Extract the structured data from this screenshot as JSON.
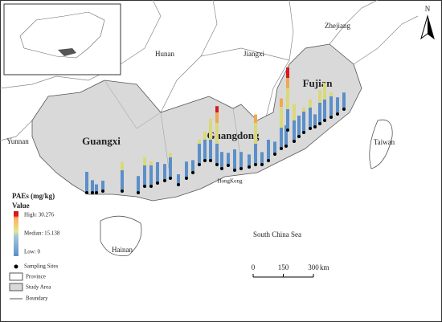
{
  "north": "N",
  "places": {
    "zhejiang": "Zhejiang",
    "hunan": "Hunan",
    "jiangxi": "Jiangxi",
    "fujian": "Fujian",
    "yunnan": "Yunnan",
    "guangxi": "Guangxi",
    "guangdong": "Guangdong",
    "taiwan": "Taiwan",
    "hongkong": "HongKong",
    "hainan": "Hainan",
    "sea": "South China Sea"
  },
  "legend": {
    "title": "PAEs (mg/kg)",
    "subtitle": "Value",
    "high": "High: 30.276",
    "median": "Median: 15.138",
    "low": "Low: 0",
    "sites": "Sampling Sites",
    "province": "Province",
    "study_area": "Study Area",
    "boundary": "Boundary"
  },
  "scale_bar": {
    "ticks": [
      0,
      150,
      300
    ],
    "unit": "km"
  },
  "sites": [
    10,
    6,
    4,
    5,
    14,
    8,
    14,
    12,
    10,
    8,
    12,
    5,
    8,
    6,
    12,
    14,
    20,
    28,
    8,
    6,
    10,
    8,
    6,
    24,
    6,
    10,
    6,
    24,
    10,
    30,
    18,
    10,
    12,
    14,
    6,
    16,
    18,
    12,
    8,
    8
  ]
}
